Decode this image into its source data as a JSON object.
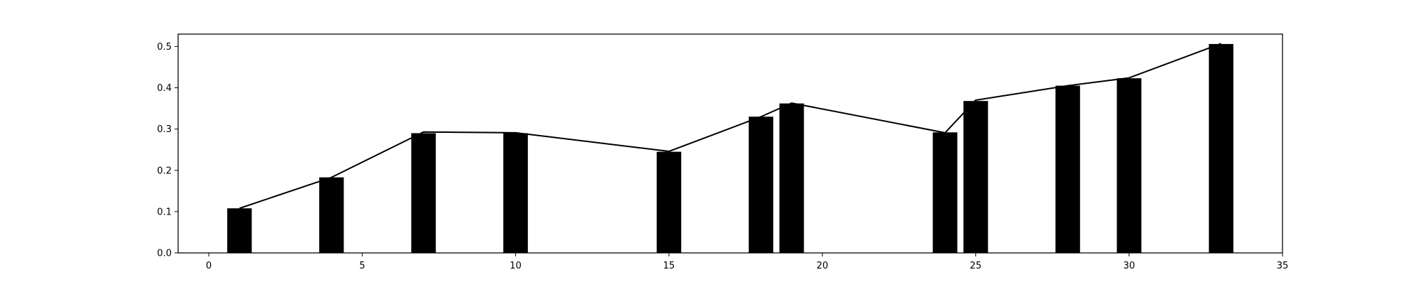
{
  "chart_data": {
    "type": "bar",
    "title": "",
    "xlabel": "",
    "ylabel": "",
    "xlim": [
      -1,
      35
    ],
    "ylim": [
      0,
      0.53
    ],
    "x_ticks": [
      0,
      5,
      10,
      15,
      20,
      25,
      30,
      35
    ],
    "y_ticks": [
      0.0,
      0.1,
      0.2,
      0.3,
      0.4,
      0.5
    ],
    "x_tick_labels": [
      "0",
      "5",
      "10",
      "15",
      "20",
      "25",
      "30",
      "35"
    ],
    "y_tick_labels": [
      "0.0",
      "0.1",
      "0.2",
      "0.3",
      "0.4",
      "0.5"
    ],
    "grid": false,
    "colors": {
      "bars": "#000000",
      "line": "#000000",
      "axes": "#000000",
      "background": "#ffffff"
    },
    "series": [
      {
        "kind": "bar",
        "x": [
          1,
          4,
          7,
          10,
          15,
          18,
          19,
          24,
          25,
          28,
          30,
          33
        ],
        "values": [
          0.108,
          0.183,
          0.29,
          0.29,
          0.245,
          0.33,
          0.362,
          0.292,
          0.368,
          0.405,
          0.423,
          0.506
        ],
        "bar_width": 0.8
      },
      {
        "kind": "line",
        "x": [
          1,
          4,
          7,
          10,
          15,
          18,
          19,
          24,
          25,
          28,
          30,
          33
        ],
        "values": [
          0.108,
          0.183,
          0.293,
          0.291,
          0.246,
          0.33,
          0.363,
          0.291,
          0.37,
          0.405,
          0.424,
          0.507
        ]
      }
    ]
  }
}
